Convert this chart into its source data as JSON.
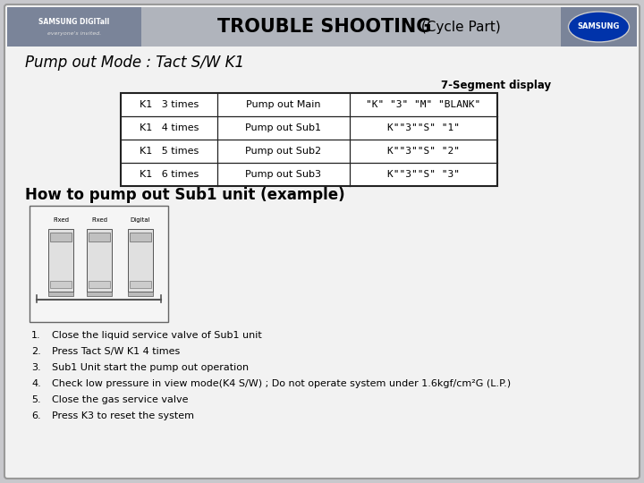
{
  "title_bold": "TROUBLE SHOOTING",
  "title_normal": " (Cycle Part)",
  "header_bg_center": "#b0b4bc",
  "header_bg_left": "#7a8499",
  "header_bg_right": "#7a8499",
  "body_bg": "#c8c8cc",
  "main_bg": "#f2f2f2",
  "subtitle": "Pump out Mode : Tact S/W K1",
  "segment_label": "7-Segment display",
  "table_rows": [
    [
      "K1   3 times",
      "Pump out Main",
      "\"K\" \"3\" \"M\" \"BLANK\""
    ],
    [
      "K1   4 times",
      "Pump out Sub1",
      "K\"\"3\"\"S\" \"1\""
    ],
    [
      "K1   5 times",
      "Pump out Sub2",
      "K\"\"3\"\"S\" \"2\""
    ],
    [
      "K1   6 times",
      "Pump out Sub3",
      "K\"\"3\"\"S\" \"3\""
    ]
  ],
  "section2_title": "How to pump out Sub1 unit (example)",
  "numbered_list": [
    "Close the liquid service valve of Sub1 unit",
    "Press Tact S/W K1 4 times",
    "Sub1 Unit start the pump out operation",
    "Check low pressure in view mode(K4 S/W) ; Do not operate system under 1.6kgf/cm²G (L.P.)",
    "Close the gas service valve",
    "Press K3 to reset the system"
  ],
  "image_labels": [
    "Fixed",
    "Fixed",
    "Digital"
  ],
  "outer_border_color": "#999999",
  "table_border_color": "#222222",
  "white": "#ffffff",
  "samsung_blue": "#0033aa"
}
